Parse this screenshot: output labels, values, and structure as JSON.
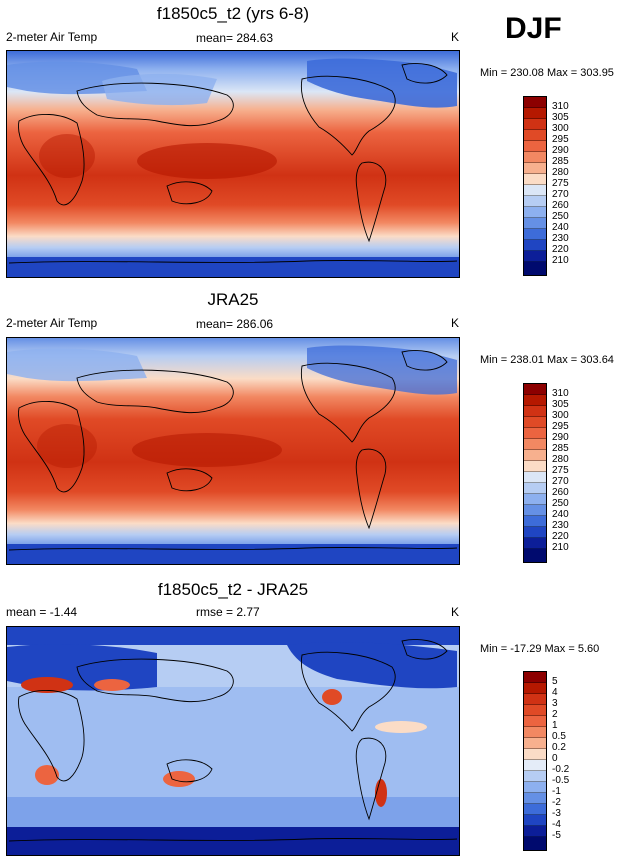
{
  "season": "DJF",
  "panels": [
    {
      "title": "f1850c5_t2 (yrs 6-8)",
      "left_label": "2-meter Air Temp",
      "center_label": "mean= 284.63",
      "units": "K",
      "minmax": "Min = 230.08 Max = 303.95",
      "colorbar": [
        "310",
        "305",
        "300",
        "295",
        "290",
        "285",
        "280",
        "275",
        "270",
        "260",
        "250",
        "240",
        "230",
        "220",
        "210"
      ],
      "colors": [
        "#8c0000",
        "#b51800",
        "#d03214",
        "#e04a26",
        "#ec6440",
        "#f28862",
        "#f7b08e",
        "#fbdcc6",
        "#dbe6f6",
        "#b6cdf3",
        "#8db0ef",
        "#6590e5",
        "#3d6cd9",
        "#1f45c2",
        "#0c1e98",
        "#000a6e"
      ]
    },
    {
      "title": "JRA25",
      "left_label": "2-meter Air Temp",
      "center_label": "mean= 286.06",
      "units": "K",
      "minmax": "Min = 238.01 Max = 303.64",
      "colorbar": [
        "310",
        "305",
        "300",
        "295",
        "290",
        "285",
        "280",
        "275",
        "270",
        "260",
        "250",
        "240",
        "230",
        "220",
        "210"
      ],
      "colors": [
        "#8c0000",
        "#b51800",
        "#d03214",
        "#e04a26",
        "#ec6440",
        "#f28862",
        "#f7b08e",
        "#fbdcc6",
        "#dbe6f6",
        "#b6cdf3",
        "#8db0ef",
        "#6590e5",
        "#3d6cd9",
        "#1f45c2",
        "#0c1e98",
        "#000a6e"
      ]
    },
    {
      "title": "f1850c5_t2 - JRA25",
      "left_label": "mean = -1.44",
      "center_label": "rmse =   2.77",
      "units": "K",
      "minmax": "Min = -17.29 Max =   5.60",
      "colorbar": [
        "5",
        "4",
        "3",
        "2",
        "1",
        "0.5",
        "0.2",
        "0",
        "-0.2",
        "-0.5",
        "-1",
        "-2",
        "-3",
        "-4",
        "-5"
      ],
      "colors": [
        "#8c0000",
        "#b51800",
        "#d03214",
        "#e04a26",
        "#ec6440",
        "#f28862",
        "#f7b08e",
        "#fbdcc6",
        "#e4ecf8",
        "#b6cdf3",
        "#8db0ef",
        "#6590e5",
        "#3d6cd9",
        "#1f45c2",
        "#0c1e98",
        "#000a6e"
      ]
    }
  ]
}
